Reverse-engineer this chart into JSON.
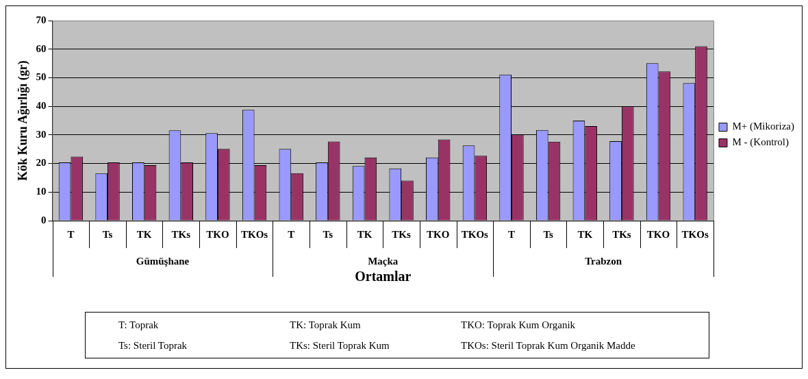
{
  "chart_data": {
    "type": "bar",
    "xlabel": "Ortamlar",
    "ylabel": "Kök Kuru Ağırlığı (gr)",
    "categories": [
      "T",
      "Ts",
      "TK",
      "TKs",
      "TKO",
      "TKOs",
      "T",
      "Ts",
      "TK",
      "TKs",
      "TKO",
      "TKOs",
      "T",
      "Ts",
      "TK",
      "TKs",
      "TKO",
      "TKOs"
    ],
    "series": [
      {
        "name": "M+ (Mikoriza)",
        "color": "#9999ff",
        "values": [
          20.4,
          16.6,
          20.4,
          31.6,
          30.6,
          38.8,
          25.1,
          20.4,
          19.1,
          18.3,
          22.1,
          26.3,
          51.1,
          31.7,
          35.0,
          27.8,
          55.1,
          48.1
        ]
      },
      {
        "name": "M - (Kontrol)",
        "color": "#993366",
        "values": [
          22.4,
          20.4,
          19.4,
          20.4,
          25.1,
          19.4,
          16.6,
          27.7,
          22.1,
          14.0,
          28.4,
          22.7,
          30.1,
          27.6,
          33.1,
          40.0,
          52.2,
          61.0
        ]
      }
    ],
    "ylim": [
      0,
      70
    ],
    "yticks": [
      0,
      10,
      20,
      30,
      40,
      50,
      60,
      70
    ],
    "grid": "y",
    "legend": "right",
    "annotations": [
      "Gümüşhane",
      "Maçka",
      "Trabzon",
      "T: Toprak",
      "TK: Toprak Kum",
      "TKO: Toprak Kum Organik",
      "Ts: Steril Toprak",
      "TKs: Steril Toprak Kum",
      "TKOs: Steril Toprak Kum Organik Madde"
    ]
  }
}
